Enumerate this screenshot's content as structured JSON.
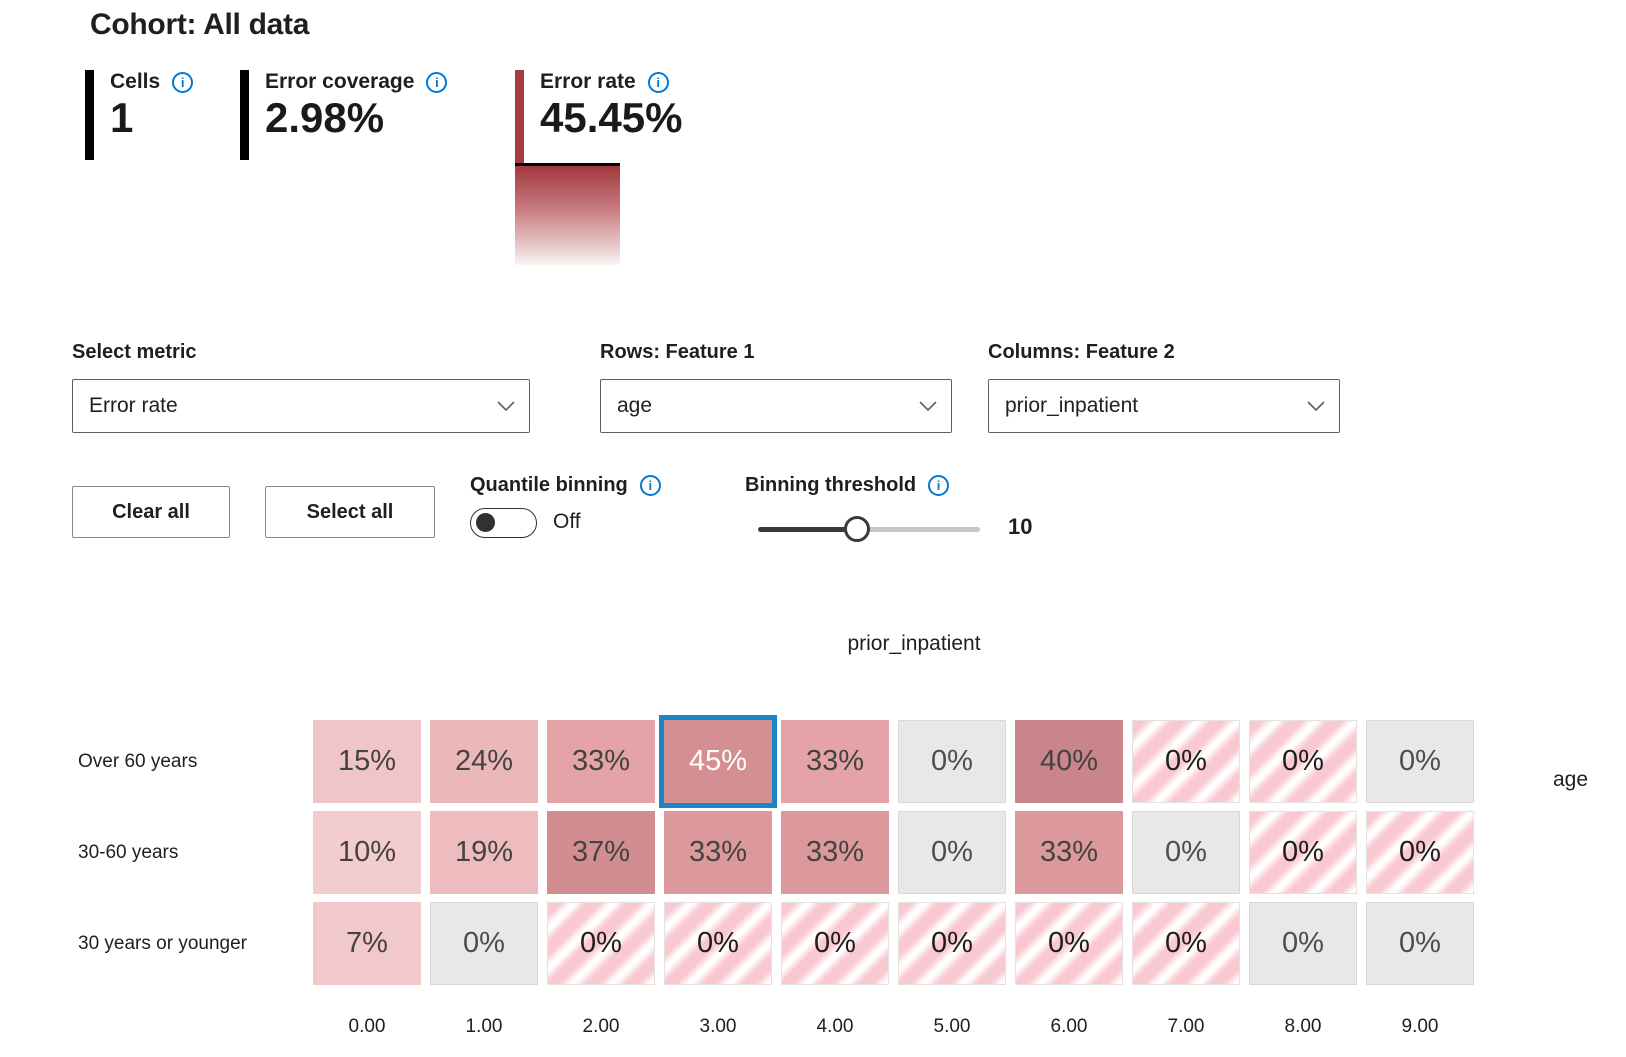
{
  "header": {
    "title": "Cohort: All data"
  },
  "metrics": {
    "cells": {
      "label": "Cells",
      "value": "1"
    },
    "error_coverage": {
      "label": "Error coverage",
      "value": "2.98%"
    },
    "error_rate": {
      "label": "Error rate",
      "value": "45.45%"
    }
  },
  "colors": {
    "error_accent": "#a63b42",
    "selected_cell_border": "#1a86c8",
    "info_icon_blue": "#0078d4",
    "empty_cell": "#e9e8e8",
    "stripe_pink": "#f9c8d0"
  },
  "controls": {
    "select_metric_label": "Select metric",
    "select_metric_value": "Error rate",
    "rows_feature_label": "Rows: Feature 1",
    "rows_feature_value": "age",
    "cols_feature_label": "Columns: Feature 2",
    "cols_feature_value": "prior_inpatient",
    "clear_all_label": "Clear all",
    "select_all_label": "Select all",
    "quantile_binning_label": "Quantile binning",
    "quantile_binning_state": "Off",
    "binning_threshold_label": "Binning threshold",
    "binning_threshold_value": "10"
  },
  "chart_data": {
    "type": "heatmap",
    "title": "prior_inpatient",
    "row_axis_label": "age",
    "row_labels": [
      "Over 60 years",
      "30-60 years",
      "30 years or younger"
    ],
    "col_labels": [
      "0.00",
      "1.00",
      "2.00",
      "3.00",
      "4.00",
      "5.00",
      "6.00",
      "7.00",
      "8.00",
      "9.00"
    ],
    "values_pct": [
      [
        15,
        24,
        33,
        45,
        33,
        0,
        40,
        0,
        0,
        0
      ],
      [
        10,
        19,
        37,
        33,
        33,
        0,
        33,
        0,
        0,
        0
      ],
      [
        7,
        0,
        0,
        0,
        0,
        0,
        0,
        0,
        0,
        0
      ]
    ],
    "selected_cell": {
      "row": 0,
      "col": 3
    },
    "cells": [
      [
        {
          "label": "15%",
          "kind": "heat",
          "fill": "#f0c5c7"
        },
        {
          "label": "24%",
          "kind": "heat",
          "fill": "#ecb7b9"
        },
        {
          "label": "33%",
          "kind": "heat",
          "fill": "#e4a4a7"
        },
        {
          "label": "45%",
          "kind": "heat",
          "fill": "#d48f93",
          "selected": true
        },
        {
          "label": "33%",
          "kind": "heat",
          "fill": "#e4a4a7"
        },
        {
          "label": "0%",
          "kind": "empty"
        },
        {
          "label": "40%",
          "kind": "heat",
          "fill": "#c9858b"
        },
        {
          "label": "0%",
          "kind": "striped"
        },
        {
          "label": "0%",
          "kind": "striped"
        },
        {
          "label": "0%",
          "kind": "empty"
        }
      ],
      [
        {
          "label": "10%",
          "kind": "heat",
          "fill": "#f3cccd"
        },
        {
          "label": "19%",
          "kind": "heat",
          "fill": "#eebcbe"
        },
        {
          "label": "37%",
          "kind": "heat",
          "fill": "#d28d91"
        },
        {
          "label": "33%",
          "kind": "heat",
          "fill": "#db999c"
        },
        {
          "label": "33%",
          "kind": "heat",
          "fill": "#db999c"
        },
        {
          "label": "0%",
          "kind": "empty"
        },
        {
          "label": "33%",
          "kind": "heat",
          "fill": "#db999c"
        },
        {
          "label": "0%",
          "kind": "empty"
        },
        {
          "label": "0%",
          "kind": "striped"
        },
        {
          "label": "0%",
          "kind": "striped"
        }
      ],
      [
        {
          "label": "7%",
          "kind": "heat",
          "fill": "#f2c9cb"
        },
        {
          "label": "0%",
          "kind": "empty"
        },
        {
          "label": "0%",
          "kind": "striped"
        },
        {
          "label": "0%",
          "kind": "striped"
        },
        {
          "label": "0%",
          "kind": "striped"
        },
        {
          "label": "0%",
          "kind": "striped"
        },
        {
          "label": "0%",
          "kind": "striped"
        },
        {
          "label": "0%",
          "kind": "striped"
        },
        {
          "label": "0%",
          "kind": "empty"
        },
        {
          "label": "0%",
          "kind": "empty"
        }
      ]
    ]
  }
}
